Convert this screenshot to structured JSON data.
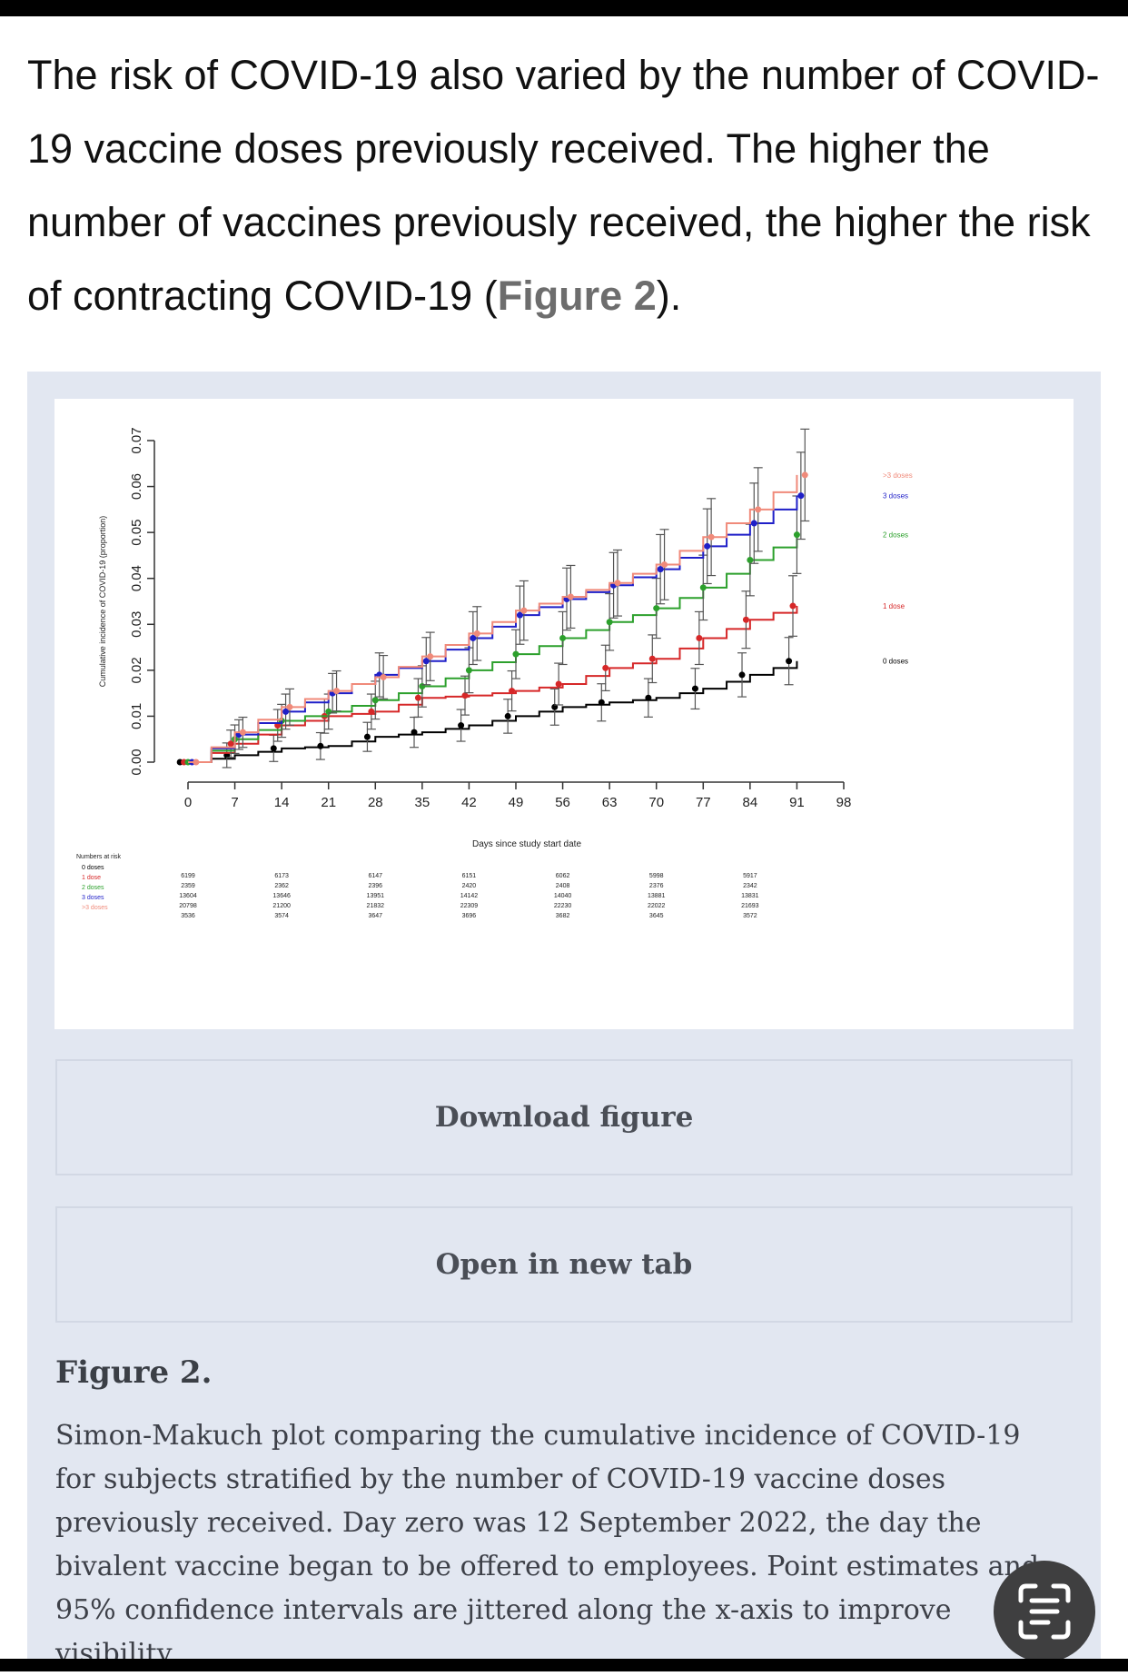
{
  "intro": {
    "text": "The risk of COVID-19 also varied by the number of COVID-19 vaccine doses previously received. The higher the number of vaccines previously received, the higher the risk of contracting COVID-19 (",
    "link": "Figure 2",
    "tail": ")."
  },
  "buttons": {
    "download": "Download figure",
    "open_tab": "Open in new tab"
  },
  "figure": {
    "title": "Figure 2.",
    "caption": "Simon-Makuch plot comparing the cumulative incidence of COVID-19 for subjects stratified by the number of COVID-19 vaccine doses previously received. Day zero was 12 September 2022, the day the bivalent vaccine began to be offered to employees. Point estimates and 95% confidence intervals are jittered along the x-axis to improve visibility."
  },
  "icons": {
    "scan": "text-scan-icon"
  },
  "chart_data": {
    "type": "line",
    "xlabel": "Days since study start date",
    "ylabel": "Cumulative incidence of COVID-19 (proportion)",
    "xlim": [
      0,
      98
    ],
    "ylim": [
      0,
      0.07
    ],
    "x_ticks": [
      0,
      7,
      14,
      21,
      28,
      35,
      42,
      49,
      56,
      63,
      70,
      77,
      84,
      91,
      98
    ],
    "y_ticks": [
      "0.00",
      "0.01",
      "0.02",
      "0.03",
      "0.04",
      "0.05",
      "0.06",
      "0.07"
    ],
    "x": [
      0,
      7,
      14,
      21,
      28,
      35,
      42,
      49,
      56,
      63,
      70,
      77,
      84,
      91
    ],
    "series": [
      {
        "name": "0 doses",
        "color": "#000000",
        "values": [
          0.0,
          0.0015,
          0.003,
          0.0035,
          0.0055,
          0.0065,
          0.008,
          0.01,
          0.012,
          0.013,
          0.014,
          0.016,
          0.019,
          0.022
        ]
      },
      {
        "name": "1 dose",
        "color": "#d62728",
        "values": [
          0.0,
          0.004,
          0.008,
          0.01,
          0.011,
          0.014,
          0.0145,
          0.0155,
          0.017,
          0.0205,
          0.0225,
          0.027,
          0.031,
          0.034
        ]
      },
      {
        "name": "2 doses",
        "color": "#2ca02c",
        "values": [
          0.0,
          0.005,
          0.009,
          0.011,
          0.0135,
          0.0165,
          0.02,
          0.0235,
          0.027,
          0.0305,
          0.0335,
          0.038,
          0.044,
          0.0495
        ]
      },
      {
        "name": "3 doses",
        "color": "#1f1fc8",
        "values": [
          0.0,
          0.006,
          0.011,
          0.015,
          0.019,
          0.022,
          0.027,
          0.032,
          0.0355,
          0.0385,
          0.042,
          0.047,
          0.052,
          0.058
        ]
      },
      {
        "name": ">3 doses",
        "color": "#f08a7a",
        "values": [
          0.0,
          0.0065,
          0.012,
          0.0155,
          0.0185,
          0.023,
          0.028,
          0.033,
          0.036,
          0.039,
          0.043,
          0.049,
          0.055,
          0.0625
        ]
      }
    ],
    "risk_table": {
      "title": "Numbers at risk",
      "labels": [
        "0 doses",
        "1 dose",
        "2 doses",
        "3 doses",
        ">3 doses"
      ],
      "label_colors": [
        "#000000",
        "#d62728",
        "#2ca02c",
        "#1f1fc8",
        "#f08a7a"
      ],
      "days": [
        0,
        14,
        28,
        42,
        56,
        70,
        84
      ],
      "rows": [
        [
          "6199",
          "6173",
          "6147",
          "6151",
          "6062",
          "5998",
          "5917"
        ],
        [
          "2359",
          "2362",
          "2396",
          "2420",
          "2408",
          "2376",
          "2342"
        ],
        [
          "13604",
          "13646",
          "13951",
          "14142",
          "14040",
          "13881",
          "13831"
        ],
        [
          "20798",
          "21200",
          "21832",
          "22309",
          "22230",
          "22022",
          "21693"
        ],
        [
          "3536",
          "3574",
          "3647",
          "3696",
          "3682",
          "3645",
          "3572"
        ]
      ]
    }
  }
}
